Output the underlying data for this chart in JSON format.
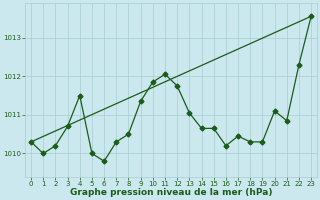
{
  "title": "Graphe pression niveau de la mer (hPa)",
  "xlabel_ticks": [
    0,
    1,
    2,
    3,
    4,
    5,
    6,
    7,
    8,
    9,
    10,
    11,
    12,
    13,
    14,
    15,
    16,
    17,
    18,
    19,
    20,
    21,
    22,
    23
  ],
  "yticks": [
    1010,
    1011,
    1012,
    1013
  ],
  "ylim": [
    1009.4,
    1013.9
  ],
  "xlim": [
    -0.5,
    23.5
  ],
  "background_color": "#cce8ef",
  "grid_color": "#aaccd4",
  "line_color": "#1a5c1a",
  "series1_x": [
    0,
    1,
    2,
    3,
    4,
    5,
    6,
    7,
    8,
    9,
    10,
    11,
    12,
    13,
    14,
    15,
    16,
    17,
    18,
    19,
    20,
    21,
    22,
    23
  ],
  "series1_y": [
    1010.3,
    1010.0,
    1010.2,
    1010.7,
    1011.5,
    1010.0,
    1009.8,
    1010.3,
    1010.5,
    1011.35,
    1011.85,
    1012.05,
    1011.75,
    1011.05,
    1010.65,
    1010.65,
    1010.2,
    1010.45,
    1010.3,
    1010.3,
    1011.1,
    1010.85,
    1012.3,
    1013.55
  ],
  "series2_x": [
    0,
    23
  ],
  "series2_y": [
    1010.3,
    1013.55
  ],
  "marker": "D",
  "marker_size": 2.5,
  "linewidth": 0.9,
  "title_fontsize": 6.5,
  "tick_fontsize": 5.0,
  "text_color": "#1a5c1a"
}
